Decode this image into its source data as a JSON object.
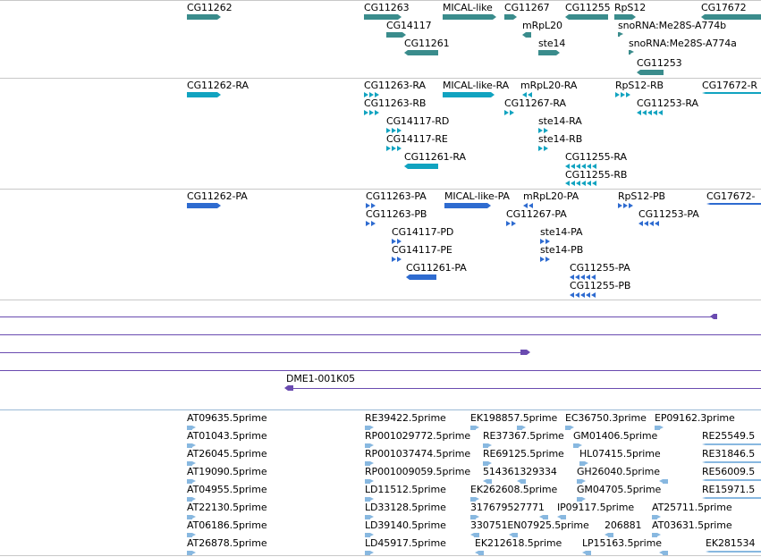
{
  "colors": {
    "gene": "#3a8c8c",
    "transcript": "#11a3c0",
    "protein": "#2e6bd0",
    "clone": "#6a4bb0",
    "est": "#88b8e0",
    "separator": "#c8c8c8"
  },
  "tracks": {
    "genes": [
      {
        "label": "CG11262"
      },
      {
        "label": "CG11263"
      },
      {
        "label": "MICAL-like"
      },
      {
        "label": "CG11267"
      },
      {
        "label": "CG11255"
      },
      {
        "label": "RpS12"
      },
      {
        "label": "CG17672"
      },
      {
        "label": "CG14117"
      },
      {
        "label": "mRpL20"
      },
      {
        "label": "snoRNA:Me28S-A774b"
      },
      {
        "label": "CG11261"
      },
      {
        "label": "ste14"
      },
      {
        "label": "snoRNA:Me28S-A774a"
      },
      {
        "label": "CG11253"
      }
    ],
    "transcripts": [
      {
        "label": "CG11262-RA"
      },
      {
        "label": "CG11263-RA"
      },
      {
        "label": "MICAL-like-RA"
      },
      {
        "label": "mRpL20-RA"
      },
      {
        "label": "RpS12-RB"
      },
      {
        "label": "CG17672-R"
      },
      {
        "label": "CG11263-RB"
      },
      {
        "label": "CG11267-RA"
      },
      {
        "label": "CG11253-RA"
      },
      {
        "label": "CG14117-RD"
      },
      {
        "label": "ste14-RA"
      },
      {
        "label": "CG14117-RE"
      },
      {
        "label": "ste14-RB"
      },
      {
        "label": "CG11261-RA"
      },
      {
        "label": "CG11255-RA"
      },
      {
        "label": "CG11255-RB"
      }
    ],
    "proteins": [
      {
        "label": "CG11262-PA"
      },
      {
        "label": "CG11263-PA"
      },
      {
        "label": "MICAL-like-PA"
      },
      {
        "label": "mRpL20-PA"
      },
      {
        "label": "RpS12-PB"
      },
      {
        "label": "CG17672-"
      },
      {
        "label": "CG11263-PB"
      },
      {
        "label": "CG11267-PA"
      },
      {
        "label": "CG11253-PA"
      },
      {
        "label": "CG14117-PD"
      },
      {
        "label": "ste14-PA"
      },
      {
        "label": "CG14117-PE"
      },
      {
        "label": "ste14-PB"
      },
      {
        "label": "CG11261-PA"
      },
      {
        "label": "CG11255-PA"
      },
      {
        "label": "CG11255-PB"
      }
    ],
    "clones": [
      {
        "label": ""
      },
      {
        "label": ""
      },
      {
        "label": ""
      },
      {
        "label": ""
      },
      {
        "label": "DME1-001K05"
      }
    ],
    "ests": [
      {
        "label": "AT09635.5prime"
      },
      {
        "label": "RE39422.5prime"
      },
      {
        "label": "EK198857.5prime"
      },
      {
        "label": "EC36750.3prime"
      },
      {
        "label": "EP09162.3prime"
      },
      {
        "label": "AT01043.5prime"
      },
      {
        "label": "RP001029772.5prime"
      },
      {
        "label": "RE37367.5prime"
      },
      {
        "label": "GM01406.5prime"
      },
      {
        "label": "RE25549.5"
      },
      {
        "label": "AT26045.5prime"
      },
      {
        "label": "RP001037474.5prime"
      },
      {
        "label": "RE69125.5prime"
      },
      {
        "label": "HL07415.5prime"
      },
      {
        "label": "RE31846.5"
      },
      {
        "label": "AT19090.5prime"
      },
      {
        "label": "RP001009059.5prime"
      },
      {
        "label": "514361329334"
      },
      {
        "label": "GH26040.5prime"
      },
      {
        "label": "RE56009.5"
      },
      {
        "label": "AT04955.5prime"
      },
      {
        "label": "LD11512.5prime"
      },
      {
        "label": "EK262608.5prime"
      },
      {
        "label": "GM04705.5prime"
      },
      {
        "label": "RE15971.5"
      },
      {
        "label": "AT22130.5prime"
      },
      {
        "label": "LD33128.5prime"
      },
      {
        "label": "317679527771"
      },
      {
        "label": "IP09117.5prime"
      },
      {
        "label": "AT25711.5prime"
      },
      {
        "label": "AT06186.5prime"
      },
      {
        "label": "LD39140.5prime"
      },
      {
        "label": "330751EN07925.5prime"
      },
      {
        "label": "206881"
      },
      {
        "label": "AT03631.5prime"
      },
      {
        "label": "AT26878.5prime"
      },
      {
        "label": "LD45917.5prime"
      },
      {
        "label": "EK212618.5prime"
      },
      {
        "label": "LP15163.5prime"
      },
      {
        "label": "EK281534"
      }
    ]
  }
}
